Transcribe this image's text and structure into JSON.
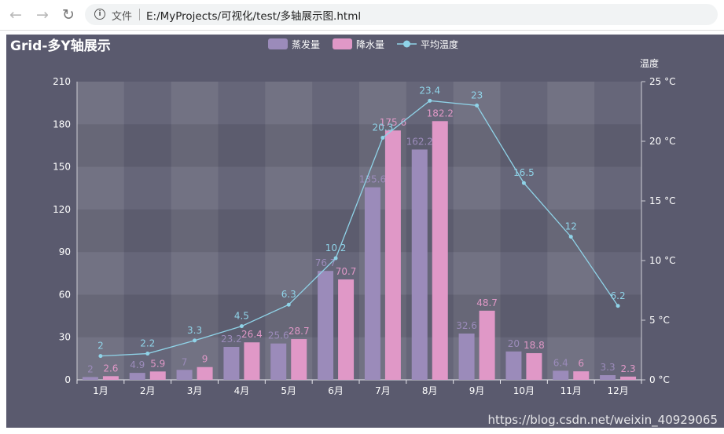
{
  "browser": {
    "back_icon": "arrow-left-icon",
    "forward_icon": "arrow-right-icon",
    "reload_icon": "reload-icon",
    "info_icon": "info-circle-icon",
    "file_label": "文件",
    "url": "E:/MyProjects/可视化/test/多轴展示图.html"
  },
  "colors": {
    "background": "#5a5a6e",
    "evaporation": "#9b8bba",
    "precipitation": "#e098c7",
    "temperature": "#8fd3e8",
    "axis_text": "#ffffff"
  },
  "watermark": "https://blog.csdn.net/weixin_40929065",
  "chart_data": {
    "type": "bar",
    "title": "Grid-多Y轴展示",
    "categories": [
      "1月",
      "2月",
      "3月",
      "4月",
      "5月",
      "6月",
      "7月",
      "8月",
      "9月",
      "10月",
      "11月",
      "12月"
    ],
    "series": [
      {
        "name": "蒸发量",
        "type": "bar",
        "axis": "left",
        "values": [
          2,
          4.9,
          7,
          23.2,
          25.6,
          76.7,
          135.6,
          162.2,
          32.6,
          20,
          6.4,
          3.3
        ]
      },
      {
        "name": "降水量",
        "type": "bar",
        "axis": "left",
        "values": [
          2.6,
          5.9,
          9,
          26.4,
          28.7,
          70.7,
          175.6,
          182.2,
          48.7,
          18.8,
          6,
          2.3
        ]
      },
      {
        "name": "平均温度",
        "type": "line",
        "axis": "right",
        "values": [
          2,
          2.2,
          3.3,
          4.5,
          6.3,
          10.2,
          20.3,
          23.4,
          23,
          16.5,
          12,
          6.2
        ]
      }
    ],
    "y_left": {
      "min": 0,
      "max": 210,
      "ticks": [
        "0",
        "30",
        "60",
        "90",
        "120",
        "150",
        "180",
        "210"
      ]
    },
    "y_right": {
      "name": "温度",
      "min": 0,
      "max": 25,
      "ticks": [
        "0 °C",
        "5 °C",
        "10 °C",
        "15 °C",
        "20 °C",
        "25 °C"
      ]
    },
    "legend_position": "top-center",
    "grid": true
  }
}
